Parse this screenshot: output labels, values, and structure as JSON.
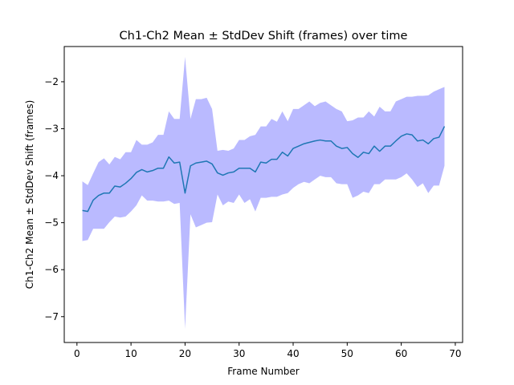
{
  "chart_data": {
    "type": "line",
    "title": "Ch1-Ch2 Mean ± StdDev Shift (frames) over time",
    "xlabel": "Frame Number",
    "ylabel": "Ch1-Ch2 Mean ± StdDev Shift (frames)",
    "xlim": [
      -2.35,
      71.35
    ],
    "ylim": [
      -7.55,
      -1.25
    ],
    "x_ticks": [
      0,
      10,
      20,
      30,
      40,
      50,
      60,
      70
    ],
    "y_ticks": [
      -7,
      -6,
      -5,
      -4,
      -3,
      -2
    ],
    "y_tick_labels": [
      "−7",
      "−6",
      "−5",
      "−4",
      "−3",
      "−2"
    ],
    "grid": false,
    "legend": "none",
    "colors": {
      "line": "#1f77b4",
      "band": "#0000ff",
      "band_opacity": 0.27
    },
    "x": [
      1,
      2,
      3,
      4,
      5,
      6,
      7,
      8,
      9,
      10,
      11,
      12,
      13,
      14,
      15,
      16,
      17,
      18,
      19,
      20,
      21,
      22,
      23,
      24,
      25,
      26,
      27,
      28,
      29,
      30,
      31,
      32,
      33,
      34,
      35,
      36,
      37,
      38,
      39,
      40,
      41,
      42,
      43,
      44,
      45,
      46,
      47,
      48,
      49,
      50,
      51,
      52,
      53,
      54,
      55,
      56,
      57,
      58,
      59,
      60,
      61,
      62,
      63,
      64,
      65,
      66,
      67,
      68
    ],
    "series": [
      {
        "values": [
          -4.74,
          -4.76,
          -4.52,
          -4.42,
          -4.37,
          -4.37,
          -4.22,
          -4.24,
          -4.16,
          -4.06,
          -3.93,
          -3.87,
          -3.92,
          -3.89,
          -3.84,
          -3.84,
          -3.6,
          -3.73,
          -3.71,
          -4.37,
          -3.79,
          -3.73,
          -3.71,
          -3.69,
          -3.75,
          -3.94,
          -3.99,
          -3.94,
          -3.92,
          -3.84,
          -3.84,
          -3.84,
          -3.92,
          -3.71,
          -3.73,
          -3.65,
          -3.65,
          -3.5,
          -3.58,
          -3.42,
          -3.37,
          -3.32,
          -3.29,
          -3.26,
          -3.24,
          -3.26,
          -3.26,
          -3.37,
          -3.42,
          -3.4,
          -3.53,
          -3.61,
          -3.5,
          -3.53,
          -3.37,
          -3.48,
          -3.37,
          -3.37,
          -3.26,
          -3.16,
          -3.11,
          -3.13,
          -3.26,
          -3.24,
          -3.32,
          -3.21,
          -3.18,
          -2.95
        ],
        "upper": [
          -4.12,
          -4.2,
          -3.95,
          -3.71,
          -3.63,
          -3.76,
          -3.6,
          -3.65,
          -3.5,
          -3.5,
          -3.24,
          -3.34,
          -3.34,
          -3.29,
          -3.13,
          -3.13,
          -2.63,
          -2.79,
          -2.79,
          -1.47,
          -2.79,
          -2.37,
          -2.37,
          -2.34,
          -2.58,
          -3.47,
          -3.45,
          -3.47,
          -3.42,
          -3.24,
          -3.24,
          -3.16,
          -3.13,
          -2.95,
          -2.95,
          -2.79,
          -2.85,
          -2.63,
          -2.84,
          -2.58,
          -2.58,
          -2.5,
          -2.42,
          -2.52,
          -2.45,
          -2.42,
          -2.5,
          -2.58,
          -2.63,
          -2.84,
          -2.82,
          -2.76,
          -2.76,
          -2.63,
          -2.74,
          -2.53,
          -2.63,
          -2.63,
          -2.42,
          -2.37,
          -2.32,
          -2.32,
          -2.3,
          -2.3,
          -2.29,
          -2.21,
          -2.16,
          -2.11
        ],
        "lower": [
          -5.39,
          -5.37,
          -5.13,
          -5.13,
          -5.13,
          -4.99,
          -4.87,
          -4.89,
          -4.87,
          -4.76,
          -4.63,
          -4.42,
          -4.53,
          -4.53,
          -4.55,
          -4.55,
          -4.53,
          -4.6,
          -4.58,
          -7.26,
          -4.82,
          -5.1,
          -5.05,
          -5.0,
          -4.99,
          -4.4,
          -4.63,
          -4.55,
          -4.58,
          -4.4,
          -4.58,
          -4.5,
          -4.76,
          -4.47,
          -4.47,
          -4.45,
          -4.45,
          -4.4,
          -4.37,
          -4.26,
          -4.18,
          -4.13,
          -4.16,
          -4.08,
          -4.0,
          -4.03,
          -4.03,
          -4.16,
          -4.18,
          -4.18,
          -4.47,
          -4.42,
          -4.34,
          -4.37,
          -4.18,
          -4.18,
          -4.08,
          -4.08,
          -4.08,
          -4.03,
          -3.95,
          -4.08,
          -4.24,
          -4.16,
          -4.37,
          -4.21,
          -4.21,
          -3.79
        ]
      }
    ]
  }
}
